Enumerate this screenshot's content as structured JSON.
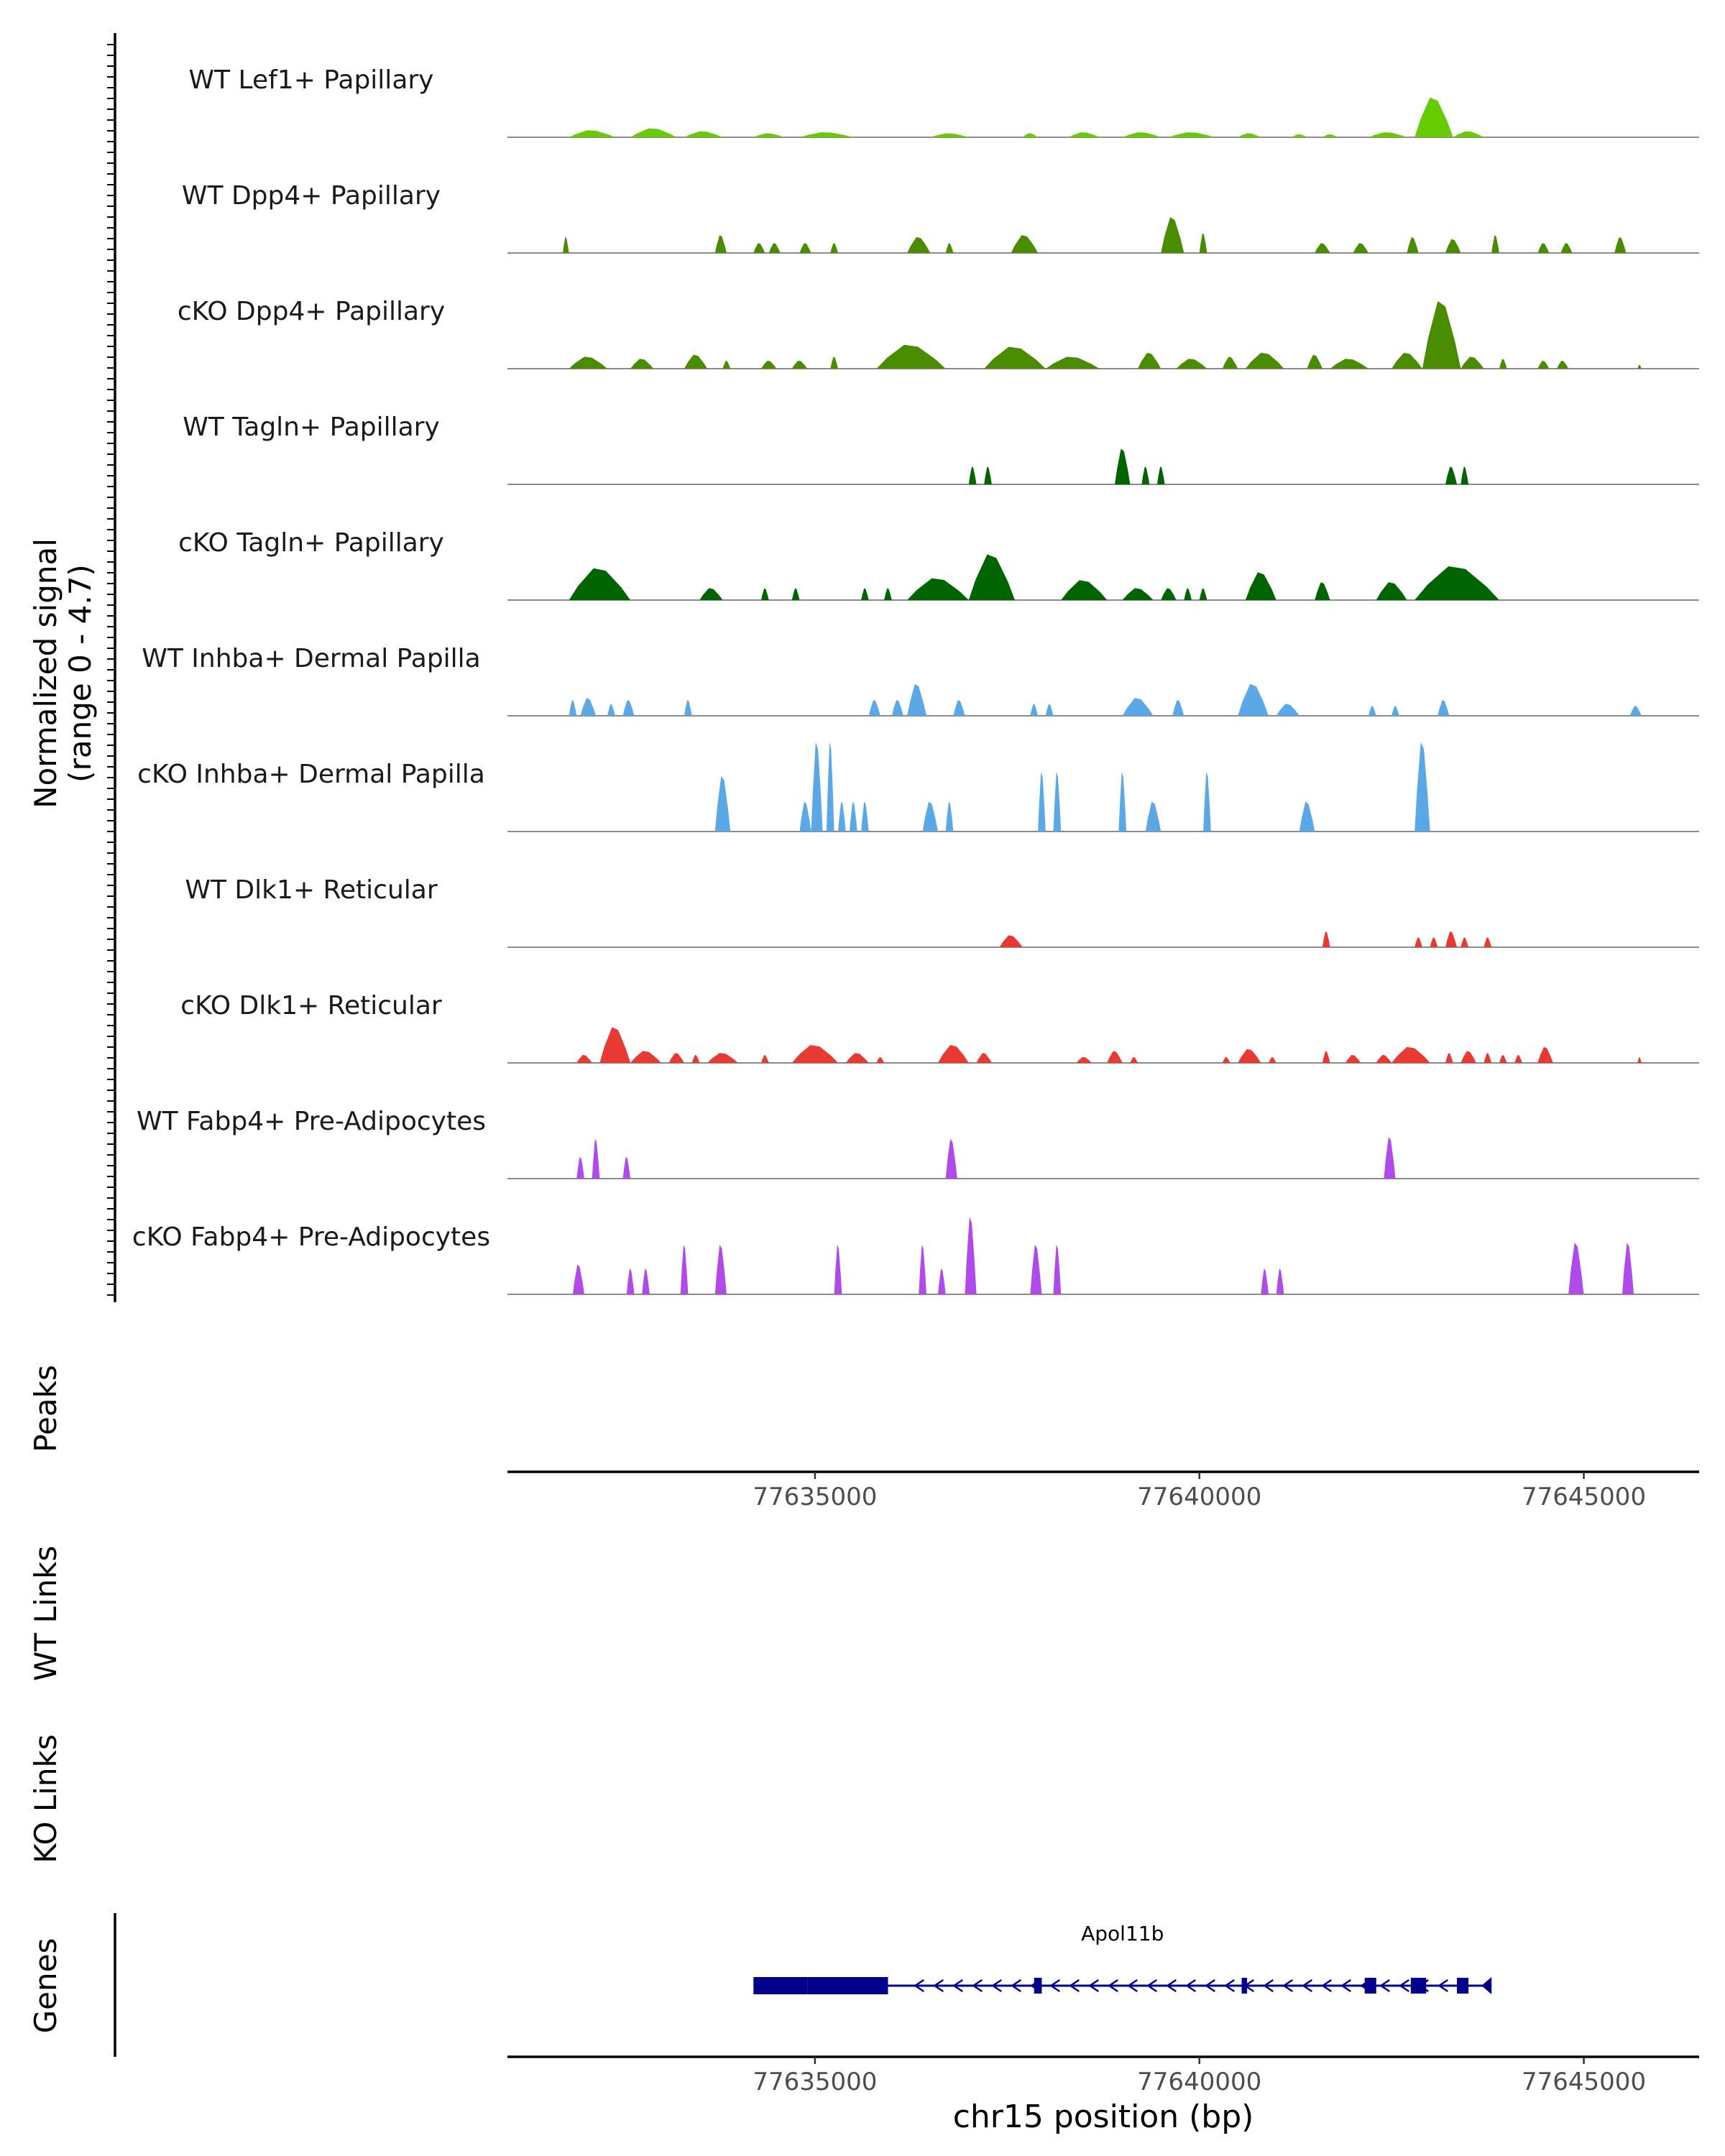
{
  "chart_data": {
    "type": "area",
    "title": "",
    "signal_axis_label": [
      "Normalized signal",
      "(range 0 - 4.7)"
    ],
    "signal_range": [
      0,
      4.7
    ],
    "xlim": [
      77631000,
      77646500
    ],
    "x_ticks": [
      77635000,
      77640000,
      77645000
    ],
    "x_tick_labels": [
      "77635000",
      "77640000",
      "77645000"
    ],
    "xlabel": "chr15 position (bp)",
    "section_labels": {
      "peaks": "Peaks",
      "wt_links": "WT Links",
      "ko_links": "KO Links",
      "genes": "Genes"
    },
    "tracks": [
      {
        "name": "WT Lef1+ Papillary",
        "color": "#66cc00",
        "peaks": [
          [
            77631800,
            77632400,
            0.35
          ],
          [
            77632600,
            77633200,
            0.45
          ],
          [
            77633300,
            77633800,
            0.3
          ],
          [
            77634200,
            77634600,
            0.2
          ],
          [
            77634800,
            77635500,
            0.25
          ],
          [
            77636500,
            77637000,
            0.2
          ],
          [
            77637700,
            77637900,
            0.2
          ],
          [
            77638300,
            77638700,
            0.25
          ],
          [
            77639000,
            77639500,
            0.25
          ],
          [
            77639600,
            77640200,
            0.25
          ],
          [
            77640500,
            77640800,
            0.2
          ],
          [
            77641200,
            77641400,
            0.15
          ],
          [
            77641600,
            77641800,
            0.15
          ],
          [
            77642200,
            77642700,
            0.25
          ],
          [
            77642800,
            77643300,
            2.0
          ],
          [
            77643300,
            77643700,
            0.3
          ]
        ]
      },
      {
        "name": "WT Dpp4+ Papillary",
        "color": "#4a8c00",
        "peaks": [
          [
            77631720,
            77631800,
            0.8
          ],
          [
            77633700,
            77633850,
            0.9
          ],
          [
            77634200,
            77634350,
            0.5
          ],
          [
            77634400,
            77634550,
            0.5
          ],
          [
            77634800,
            77634950,
            0.5
          ],
          [
            77635200,
            77635300,
            0.5
          ],
          [
            77636200,
            77636500,
            0.8
          ],
          [
            77636700,
            77636800,
            0.5
          ],
          [
            77637550,
            77637900,
            0.9
          ],
          [
            77639500,
            77639800,
            1.8
          ],
          [
            77640000,
            77640100,
            1.0
          ],
          [
            77641500,
            77641700,
            0.5
          ],
          [
            77642000,
            77642200,
            0.5
          ],
          [
            77642700,
            77642850,
            0.8
          ],
          [
            77643200,
            77643400,
            0.7
          ],
          [
            77643800,
            77643900,
            0.9
          ],
          [
            77644400,
            77644550,
            0.5
          ],
          [
            77644700,
            77644850,
            0.5
          ],
          [
            77645400,
            77645550,
            0.8
          ]
        ]
      },
      {
        "name": "cKO Dpp4+ Papillary",
        "color": "#4a8c00",
        "peaks": [
          [
            77631800,
            77632300,
            0.6
          ],
          [
            77632600,
            77632900,
            0.5
          ],
          [
            77633300,
            77633600,
            0.7
          ],
          [
            77633800,
            77633900,
            0.4
          ],
          [
            77634300,
            77634500,
            0.4
          ],
          [
            77634700,
            77634900,
            0.4
          ],
          [
            77635200,
            77635300,
            0.6
          ],
          [
            77635800,
            77636700,
            1.2
          ],
          [
            77637200,
            77638000,
            1.1
          ],
          [
            77638000,
            77638700,
            0.6
          ],
          [
            77639200,
            77639500,
            0.8
          ],
          [
            77639700,
            77640100,
            0.5
          ],
          [
            77640300,
            77640500,
            0.6
          ],
          [
            77640600,
            77641100,
            0.8
          ],
          [
            77641400,
            77641600,
            0.7
          ],
          [
            77641700,
            77642200,
            0.5
          ],
          [
            77642500,
            77642900,
            0.8
          ],
          [
            77642900,
            77643400,
            3.4
          ],
          [
            77643400,
            77643700,
            0.6
          ],
          [
            77643900,
            77644000,
            0.5
          ],
          [
            77644400,
            77644550,
            0.4
          ],
          [
            77644650,
            77644800,
            0.4
          ],
          [
            77645700,
            77645750,
            0.2
          ]
        ]
      },
      {
        "name": "WT Tagln+ Papillary",
        "color": "#006400",
        "peaks": [
          [
            77637000,
            77637100,
            0.9
          ],
          [
            77637200,
            77637300,
            0.9
          ],
          [
            77638900,
            77639100,
            1.8
          ],
          [
            77639250,
            77639350,
            0.9
          ],
          [
            77639450,
            77639550,
            0.9
          ],
          [
            77643200,
            77643350,
            0.9
          ],
          [
            77643400,
            77643500,
            0.9
          ]
        ]
      },
      {
        "name": "cKO Tagln+ Papillary",
        "color": "#006400",
        "peaks": [
          [
            77631800,
            77632600,
            1.6
          ],
          [
            77633500,
            77633800,
            0.6
          ],
          [
            77634300,
            77634400,
            0.6
          ],
          [
            77634700,
            77634800,
            0.6
          ],
          [
            77635600,
            77635700,
            0.6
          ],
          [
            77635900,
            77636000,
            0.6
          ],
          [
            77636200,
            77637000,
            1.1
          ],
          [
            77637000,
            77637600,
            2.3
          ],
          [
            77638200,
            77638800,
            1.0
          ],
          [
            77639000,
            77639400,
            0.6
          ],
          [
            77639500,
            77639700,
            0.6
          ],
          [
            77639800,
            77639900,
            0.6
          ],
          [
            77640000,
            77640100,
            0.6
          ],
          [
            77640600,
            77641000,
            1.4
          ],
          [
            77641500,
            77641700,
            0.9
          ],
          [
            77642300,
            77642700,
            0.9
          ],
          [
            77642800,
            77643900,
            1.7
          ]
        ]
      },
      {
        "name": "WT Inhba+ Dermal Papilla",
        "color": "#5aa9e6",
        "peaks": [
          [
            77631800,
            77631900,
            0.8
          ],
          [
            77631950,
            77632150,
            0.9
          ],
          [
            77632300,
            77632400,
            0.6
          ],
          [
            77632500,
            77632650,
            0.8
          ],
          [
            77633300,
            77633400,
            0.8
          ],
          [
            77635700,
            77635850,
            0.8
          ],
          [
            77636000,
            77636150,
            0.8
          ],
          [
            77636200,
            77636450,
            1.6
          ],
          [
            77636800,
            77636950,
            0.8
          ],
          [
            77637800,
            77637900,
            0.6
          ],
          [
            77638000,
            77638100,
            0.6
          ],
          [
            77639000,
            77639400,
            0.9
          ],
          [
            77639650,
            77639800,
            0.8
          ],
          [
            77640500,
            77640900,
            1.6
          ],
          [
            77641000,
            77641300,
            0.6
          ],
          [
            77642200,
            77642300,
            0.5
          ],
          [
            77642500,
            77642600,
            0.5
          ],
          [
            77643100,
            77643250,
            0.8
          ],
          [
            77645600,
            77645750,
            0.5
          ]
        ]
      },
      {
        "name": "cKO Inhba+ Dermal Papilla",
        "color": "#5aa9e6",
        "peaks": [
          [
            77633700,
            77633900,
            2.8
          ],
          [
            77634800,
            77634950,
            1.5
          ],
          [
            77634950,
            77635100,
            4.5
          ],
          [
            77635150,
            77635250,
            4.5
          ],
          [
            77635300,
            77635400,
            1.5
          ],
          [
            77635450,
            77635550,
            1.5
          ],
          [
            77635600,
            77635700,
            1.5
          ],
          [
            77636400,
            77636600,
            1.5
          ],
          [
            77636700,
            77636800,
            1.5
          ],
          [
            77637900,
            77638000,
            3.0
          ],
          [
            77638100,
            77638200,
            3.0
          ],
          [
            77638950,
            77639050,
            3.0
          ],
          [
            77639300,
            77639500,
            1.5
          ],
          [
            77640050,
            77640150,
            3.0
          ],
          [
            77641300,
            77641500,
            1.5
          ],
          [
            77642800,
            77643000,
            4.5
          ]
        ]
      },
      {
        "name": "WT Dlk1+ Reticular",
        "color": "#e83a32",
        "peaks": [
          [
            77637400,
            77637700,
            0.6
          ],
          [
            77641600,
            77641700,
            0.8
          ],
          [
            77642800,
            77642900,
            0.5
          ],
          [
            77643000,
            77643100,
            0.5
          ],
          [
            77643200,
            77643350,
            0.8
          ],
          [
            77643400,
            77643500,
            0.5
          ],
          [
            77643700,
            77643800,
            0.5
          ]
        ]
      },
      {
        "name": "cKO Dlk1+ Reticular",
        "color": "#e83a32",
        "peaks": [
          [
            77631900,
            77632100,
            0.4
          ],
          [
            77632200,
            77632600,
            1.8
          ],
          [
            77632600,
            77633000,
            0.6
          ],
          [
            77633100,
            77633300,
            0.5
          ],
          [
            77633400,
            77633500,
            0.4
          ],
          [
            77633600,
            77634000,
            0.5
          ],
          [
            77634300,
            77634400,
            0.4
          ],
          [
            77634700,
            77635300,
            0.9
          ],
          [
            77635400,
            77635700,
            0.5
          ],
          [
            77635800,
            77635900,
            0.3
          ],
          [
            77636600,
            77637000,
            0.9
          ],
          [
            77637100,
            77637300,
            0.5
          ],
          [
            77638400,
            77638600,
            0.3
          ],
          [
            77638800,
            77639000,
            0.6
          ],
          [
            77639100,
            77639200,
            0.3
          ],
          [
            77640300,
            77640400,
            0.3
          ],
          [
            77640500,
            77640800,
            0.7
          ],
          [
            77640900,
            77641000,
            0.3
          ],
          [
            77641600,
            77641700,
            0.6
          ],
          [
            77641900,
            77642100,
            0.4
          ],
          [
            77642300,
            77642500,
            0.4
          ],
          [
            77642500,
            77643000,
            0.8
          ],
          [
            77643200,
            77643300,
            0.5
          ],
          [
            77643400,
            77643600,
            0.6
          ],
          [
            77643700,
            77643800,
            0.5
          ],
          [
            77643900,
            77644000,
            0.4
          ],
          [
            77644100,
            77644200,
            0.4
          ],
          [
            77644400,
            77644600,
            0.8
          ],
          [
            77645700,
            77645750,
            0.3
          ]
        ]
      },
      {
        "name": "WT Fabp4+ Pre-Adipocytes",
        "color": "#b04ae8",
        "peaks": [
          [
            77631900,
            77632000,
            1.1
          ],
          [
            77632100,
            77632200,
            2.0
          ],
          [
            77632500,
            77632600,
            1.1
          ],
          [
            77636700,
            77636850,
            2.0
          ],
          [
            77642400,
            77642550,
            2.1
          ]
        ]
      },
      {
        "name": "cKO Fabp4+ Pre-Adipocytes",
        "color": "#b04ae8",
        "peaks": [
          [
            77631850,
            77632000,
            1.5
          ],
          [
            77632550,
            77632650,
            1.3
          ],
          [
            77632750,
            77632850,
            1.3
          ],
          [
            77633250,
            77633350,
            2.5
          ],
          [
            77633700,
            77633850,
            2.5
          ],
          [
            77635250,
            77635350,
            2.5
          ],
          [
            77636350,
            77636450,
            2.5
          ],
          [
            77636600,
            77636700,
            1.3
          ],
          [
            77636950,
            77637100,
            3.9
          ],
          [
            77637800,
            77637950,
            2.5
          ],
          [
            77638100,
            77638200,
            2.5
          ],
          [
            77640800,
            77640900,
            1.3
          ],
          [
            77641000,
            77641100,
            1.3
          ],
          [
            77644800,
            77645000,
            2.6
          ],
          [
            77645500,
            77645650,
            2.6
          ]
        ]
      }
    ],
    "gene": {
      "name": "Apol11b",
      "strand": "-",
      "start": 77634200,
      "end": 77643800,
      "exons": [
        [
          77634200,
          77634900
        ],
        [
          77634900,
          77635950
        ],
        [
          77637850,
          77637950
        ],
        [
          77640550,
          77640620
        ],
        [
          77642150,
          77642300
        ],
        [
          77642750,
          77642950
        ],
        [
          77643350,
          77643500
        ]
      ]
    }
  }
}
